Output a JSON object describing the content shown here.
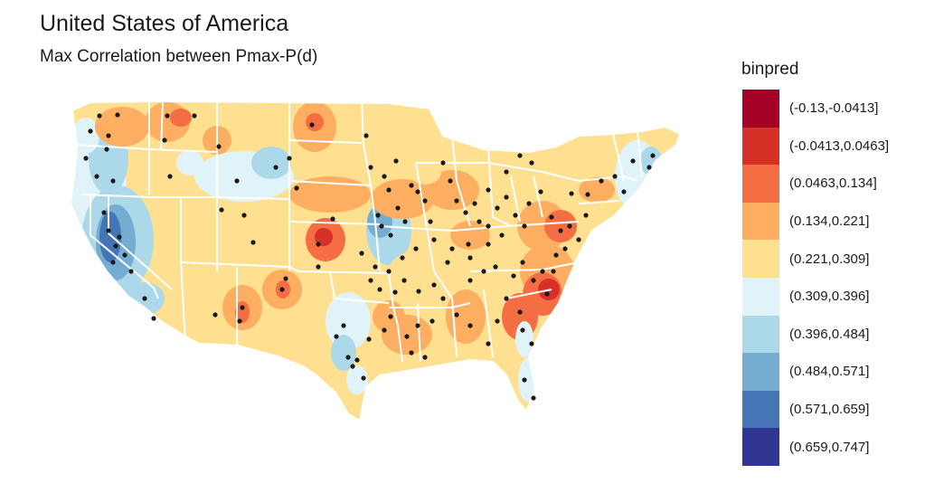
{
  "title": "United States of America",
  "subtitle": "Max Correlation between Pmax-P(d)",
  "legend": {
    "title": "binpred",
    "bins": [
      {
        "label": "(-0.13,-0.0413]",
        "color": "#a50026"
      },
      {
        "label": "(-0.0413,0.0463]",
        "color": "#d73027"
      },
      {
        "label": "(0.0463,0.134]",
        "color": "#f46d43"
      },
      {
        "label": "(0.134,0.221]",
        "color": "#fdae61"
      },
      {
        "label": "(0.221,0.309]",
        "color": "#fee090"
      },
      {
        "label": "(0.309,0.396]",
        "color": "#e0f3f8"
      },
      {
        "label": "(0.396,0.484]",
        "color": "#abd9e9"
      },
      {
        "label": "(0.484,0.571]",
        "color": "#74add1"
      },
      {
        "label": "(0.571,0.659]",
        "color": "#4575b4"
      },
      {
        "label": "(0.659,0.747]",
        "color": "#313695"
      }
    ]
  },
  "map_colors": {
    "base": "#fee090",
    "state_border": "#ffffff",
    "station": "#1a1a1a"
  }
}
